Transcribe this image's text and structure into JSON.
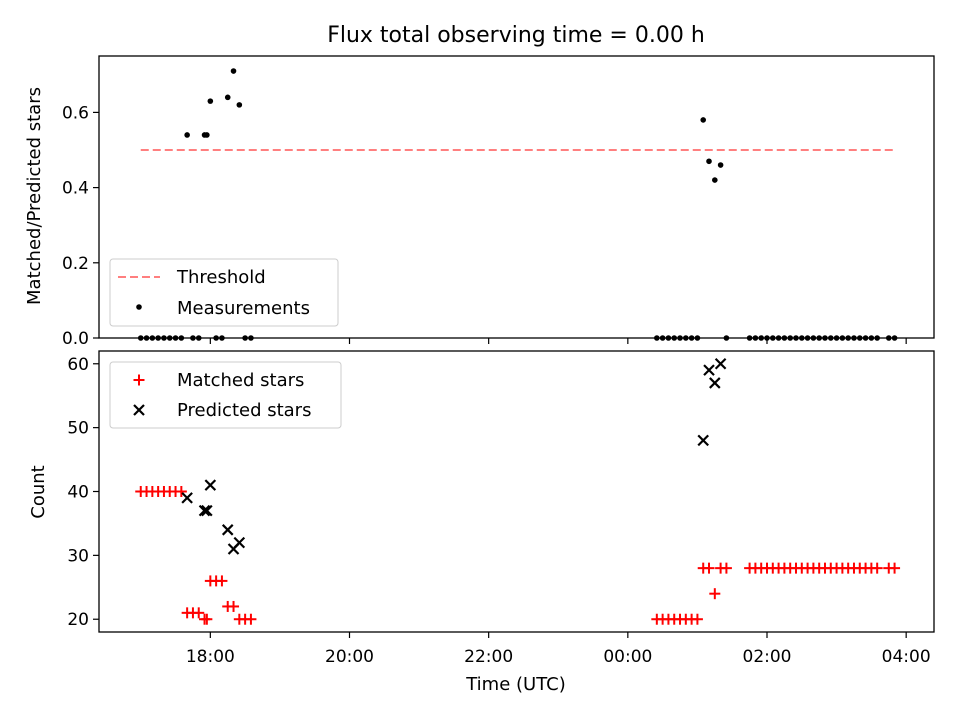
{
  "title": "Flux total observing time = 0.00 h",
  "colors": {
    "threshold": "#ff7f7f",
    "measurements": "#000000",
    "matched": "#ff0000",
    "predicted": "#000000"
  },
  "chart_data": [
    {
      "type": "scatter",
      "ylabel": "Matched/Predicted stars",
      "ylim": [
        0,
        0.75
      ],
      "xlim_hours": [
        16.4,
        28.4
      ],
      "yticks": [
        0.0,
        0.2,
        0.4,
        0.6
      ],
      "ytick_labels": [
        "0.0",
        "0.2",
        "0.4",
        "0.6"
      ],
      "legend": {
        "placement": "lower-left",
        "entries": [
          {
            "label": "Threshold",
            "marker": "dashed-line"
          },
          {
            "label": "Measurements",
            "marker": "dot"
          }
        ]
      },
      "threshold": {
        "name": "Threshold",
        "y": 0.5,
        "x_start": "17:00",
        "x_end": "03:50"
      },
      "series": [
        {
          "name": "Measurements",
          "x": [
            "17:00",
            "17:05",
            "17:10",
            "17:15",
            "17:20",
            "17:25",
            "17:30",
            "17:35",
            "17:40",
            "17:45",
            "17:50",
            "17:55",
            "17:57",
            "18:00",
            "18:05",
            "18:10",
            "18:15",
            "18:20",
            "18:25",
            "18:30",
            "18:35",
            "00:25",
            "00:30",
            "00:35",
            "00:40",
            "00:45",
            "00:50",
            "00:55",
            "01:00",
            "01:05",
            "01:10",
            "01:15",
            "01:20",
            "01:25",
            "01:45",
            "01:50",
            "01:55",
            "02:00",
            "02:05",
            "02:10",
            "02:15",
            "02:20",
            "02:25",
            "02:30",
            "02:35",
            "02:40",
            "02:45",
            "02:50",
            "02:55",
            "03:00",
            "03:05",
            "03:10",
            "03:15",
            "03:20",
            "03:25",
            "03:30",
            "03:35",
            "03:45",
            "03:50"
          ],
          "y": [
            0,
            0,
            0,
            0,
            0,
            0,
            0,
            0,
            0.54,
            0,
            0,
            0.54,
            0.54,
            0.63,
            0,
            0,
            0.64,
            0.71,
            0.62,
            0,
            0,
            0,
            0,
            0,
            0,
            0,
            0,
            0,
            0,
            0.58,
            0.47,
            0.42,
            0.46,
            0,
            0,
            0,
            0,
            0,
            0,
            0,
            0,
            0,
            0,
            0,
            0,
            0,
            0,
            0,
            0,
            0,
            0,
            0,
            0,
            0,
            0,
            0,
            0,
            0,
            0
          ]
        }
      ]
    },
    {
      "type": "scatter",
      "ylabel": "Count",
      "xlabel": "Time (UTC)",
      "ylim": [
        18,
        62
      ],
      "xlim_hours": [
        16.4,
        28.4
      ],
      "yticks": [
        20,
        30,
        40,
        50,
        60
      ],
      "ytick_labels": [
        "20",
        "30",
        "40",
        "50",
        "60"
      ],
      "xticks_hours": [
        18,
        20,
        22,
        24,
        26,
        28
      ],
      "xtick_labels": [
        "18:00",
        "20:00",
        "22:00",
        "00:00",
        "02:00",
        "04:00"
      ],
      "legend": {
        "placement": "top-left",
        "entries": [
          {
            "label": "Matched stars",
            "marker": "plus"
          },
          {
            "label": "Predicted stars",
            "marker": "x"
          }
        ]
      },
      "series": [
        {
          "name": "Matched stars",
          "x": [
            "17:00",
            "17:05",
            "17:10",
            "17:15",
            "17:20",
            "17:25",
            "17:30",
            "17:35",
            "17:40",
            "17:45",
            "17:50",
            "17:55",
            "17:57",
            "18:00",
            "18:05",
            "18:10",
            "18:15",
            "18:20",
            "18:25",
            "18:30",
            "18:35",
            "00:25",
            "00:30",
            "00:35",
            "00:40",
            "00:45",
            "00:50",
            "00:55",
            "01:00",
            "01:05",
            "01:10",
            "01:15",
            "01:20",
            "01:25",
            "01:45",
            "01:50",
            "01:55",
            "02:00",
            "02:05",
            "02:10",
            "02:15",
            "02:20",
            "02:25",
            "02:30",
            "02:35",
            "02:40",
            "02:45",
            "02:50",
            "02:55",
            "03:00",
            "03:05",
            "03:10",
            "03:15",
            "03:20",
            "03:25",
            "03:30",
            "03:35",
            "03:45",
            "03:50"
          ],
          "y": [
            40,
            40,
            40,
            40,
            40,
            40,
            40,
            40,
            21,
            21,
            21,
            20,
            20,
            26,
            26,
            26,
            22,
            22,
            20,
            20,
            20,
            20,
            20,
            20,
            20,
            20,
            20,
            20,
            20,
            28,
            28,
            24,
            28,
            28,
            28,
            28,
            28,
            28,
            28,
            28,
            28,
            28,
            28,
            28,
            28,
            28,
            28,
            28,
            28,
            28,
            28,
            28,
            28,
            28,
            28,
            28,
            28,
            28,
            28
          ]
        },
        {
          "name": "Predicted stars",
          "x": [
            "17:40",
            "17:55",
            "17:57",
            "18:00",
            "18:15",
            "18:20",
            "18:25",
            "01:05",
            "01:10",
            "01:15",
            "01:20"
          ],
          "y": [
            39,
            37,
            37,
            41,
            34,
            31,
            32,
            48,
            59,
            57,
            60
          ]
        }
      ]
    }
  ]
}
